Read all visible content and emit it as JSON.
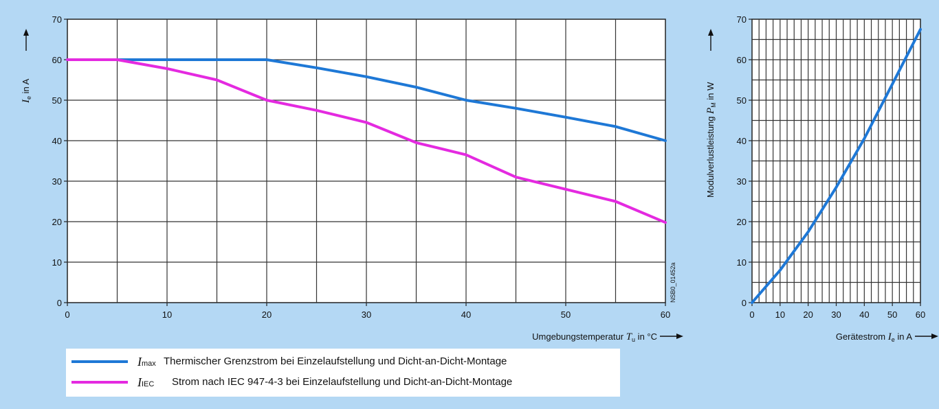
{
  "chart_data": [
    {
      "type": "line",
      "xlabel": "Umgebungstemperatur",
      "xlabel_symbol": "T",
      "xlabel_subscript": "u",
      "xlabel_unit": "in °C",
      "ylabel_symbol": "I",
      "ylabel_subscript": "e",
      "ylabel_unit": "in A",
      "xlim": [
        0,
        60
      ],
      "ylim": [
        0,
        70
      ],
      "x_ticks": [
        "0",
        "10",
        "20",
        "30",
        "40",
        "50",
        "60"
      ],
      "y_ticks": [
        "0",
        "10",
        "20",
        "30",
        "40",
        "50",
        "60",
        "70"
      ],
      "grid": true,
      "side_label": "NSB0_01452a",
      "series": [
        {
          "name": "I_max",
          "color": "#1e78d6",
          "points": [
            [
              0,
              60
            ],
            [
              5,
              60
            ],
            [
              20,
              60
            ],
            [
              25,
              58
            ],
            [
              30,
              55.8
            ],
            [
              35,
              53.2
            ],
            [
              40,
              50
            ],
            [
              45,
              48
            ],
            [
              50,
              45.8
            ],
            [
              55,
              43.5
            ],
            [
              60,
              40
            ]
          ]
        },
        {
          "name": "I_IEC",
          "color": "#e42ae0",
          "points": [
            [
              0,
              60
            ],
            [
              5,
              60
            ],
            [
              10,
              57.8
            ],
            [
              15,
              55
            ],
            [
              20,
              50
            ],
            [
              25,
              47.5
            ],
            [
              30,
              44.5
            ],
            [
              35,
              39.5
            ],
            [
              40,
              36.5
            ],
            [
              45,
              31
            ],
            [
              50,
              28
            ],
            [
              55,
              25
            ],
            [
              60,
              19.8
            ]
          ]
        }
      ]
    },
    {
      "type": "line",
      "xlabel": "Gerätestrom",
      "xlabel_symbol": "I",
      "xlabel_subscript": "e",
      "xlabel_unit": "in A",
      "ylabel": "Modulverlustleistung",
      "ylabel_symbol": "P",
      "ylabel_subscript": "M",
      "ylabel_unit": "in W",
      "xlim": [
        0,
        60
      ],
      "ylim": [
        0,
        70
      ],
      "x_ticks": [
        "0",
        "10",
        "20",
        "30",
        "40",
        "50",
        "60"
      ],
      "y_ticks": [
        "0",
        "10",
        "20",
        "30",
        "40",
        "50",
        "60",
        "70"
      ],
      "grid": true,
      "series": [
        {
          "name": "P_M",
          "color": "#1e78d6",
          "points": [
            [
              0,
              0
            ],
            [
              10,
              8
            ],
            [
              20,
              17.5
            ],
            [
              30,
              28.5
            ],
            [
              40,
              40.5
            ],
            [
              50,
              54
            ],
            [
              60,
              67.5
            ]
          ]
        }
      ]
    }
  ],
  "legend": [
    {
      "symbol": "I",
      "subscript": "max",
      "text": "Thermischer Grenzstrom bei Einzelaufstellung und Dicht-an-Dicht-Montage",
      "color": "#1e78d6"
    },
    {
      "symbol": "I",
      "subscript": "IEC",
      "text": "Strom nach IEC 947-4-3 bei Einzelaufstellung und Dicht-an-Dicht-Montage",
      "color": "#e42ae0"
    }
  ]
}
